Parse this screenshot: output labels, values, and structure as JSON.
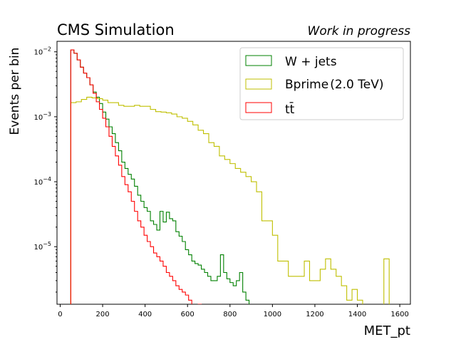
{
  "header": {
    "title": "CMS Simulation",
    "subtitle": "Work in progress"
  },
  "axes": {
    "xlabel": "MET_pt",
    "ylabel": "Events per bin",
    "x_ticks": [
      0,
      200,
      400,
      600,
      800,
      1000,
      1200,
      1400,
      1600
    ],
    "y_ticks": [
      {
        "value": 1e-05,
        "mantissa": "10",
        "exp": "−5"
      },
      {
        "value": 0.0001,
        "mantissa": "10",
        "exp": "−4"
      },
      {
        "value": 0.001,
        "mantissa": "10",
        "exp": "−3"
      },
      {
        "value": 0.01,
        "mantissa": "10",
        "exp": "−2"
      }
    ]
  },
  "chart_data": {
    "type": "step-histogram",
    "xlim": [
      -15,
      1650
    ],
    "ylim_log": [
      1.3e-06,
      0.0145
    ],
    "yscale": "log",
    "legend_position": "top-right",
    "series": [
      {
        "name": "W + jets",
        "label_text": "W + jets",
        "color": "#008000",
        "edges": [
          50,
          65,
          80,
          95,
          110,
          125,
          140,
          155,
          170,
          185,
          200,
          215,
          230,
          245,
          260,
          275,
          290,
          305,
          320,
          335,
          350,
          365,
          380,
          395,
          410,
          425,
          440,
          455,
          470,
          485,
          500,
          515,
          530,
          545,
          560,
          575,
          590,
          605,
          620,
          635,
          650,
          665,
          680,
          695,
          710,
          725,
          740,
          755,
          770,
          785,
          800,
          815,
          830,
          845,
          860,
          875,
          890,
          905,
          920,
          935,
          950,
          965,
          980,
          995,
          1010,
          1025,
          1040,
          1055,
          1070,
          1085,
          1100,
          1115,
          1130,
          1145,
          1160,
          1175,
          1190,
          1205,
          1220,
          1235,
          1250,
          1265
        ],
        "values": [
          0.0107,
          0.0095,
          0.0075,
          0.0058,
          0.0047,
          0.004,
          0.0031,
          0.0024,
          0.002,
          0.0016,
          0.00118,
          0.00092,
          0.0007,
          0.00055,
          0.0004,
          0.0003,
          0.0002,
          0.00016,
          0.00013,
          0.00011,
          8.5e-05,
          6.2e-05,
          5e-05,
          4e-05,
          3.5e-05,
          2.5e-05,
          2.2e-05,
          1.8e-05,
          3.5e-05,
          2.4e-05,
          3.4e-05,
          2.7e-05,
          2.5e-05,
          1.7e-05,
          1.45e-05,
          1.2e-05,
          9e-06,
          7.5e-06,
          6e-06,
          5.5e-06,
          5.2e-06,
          4.5e-06,
          4e-06,
          3.5e-06,
          3e-06,
          3e-06,
          3.5e-06,
          7.5e-06,
          4e-06,
          3.2e-06,
          2.8e-06,
          2.5e-06,
          3e-06,
          4e-06,
          2e-06,
          1.5e-06,
          1e-06,
          1e-06,
          1e-06,
          1e-06,
          1e-06,
          1e-06,
          1e-06,
          1e-06,
          1e-06,
          1e-06,
          1e-06,
          1e-06,
          1e-06,
          1e-06,
          1e-06,
          1e-06,
          1e-06,
          1e-06,
          1e-06,
          1e-06,
          1e-06,
          1e-06,
          1e-06,
          1e-06,
          1e-06
        ]
      },
      {
        "name": "Bprime (2.0 TeV)",
        "label_text": "Bprime",
        "label_paren": "(2.0 TeV)",
        "color": "#bfbf00",
        "edges": [
          50,
          75,
          100,
          125,
          150,
          175,
          200,
          225,
          250,
          275,
          300,
          325,
          350,
          375,
          400,
          425,
          450,
          475,
          500,
          525,
          550,
          575,
          600,
          625,
          650,
          675,
          700,
          725,
          750,
          775,
          800,
          825,
          850,
          875,
          900,
          925,
          950,
          975,
          1000,
          1025,
          1050,
          1075,
          1100,
          1125,
          1150,
          1175,
          1200,
          1225,
          1250,
          1275,
          1300,
          1325,
          1350,
          1375,
          1400,
          1425,
          1450,
          1475,
          1500,
          1525,
          1550,
          1575,
          1600
        ],
        "values": [
          0.00165,
          0.0017,
          0.00185,
          0.002,
          0.00195,
          0.0019,
          0.0018,
          0.00165,
          0.00165,
          0.0015,
          0.00145,
          0.00145,
          0.0015,
          0.00145,
          0.00145,
          0.0013,
          0.0012,
          0.00118,
          0.00115,
          0.0011,
          0.001,
          0.00095,
          0.00085,
          0.00075,
          0.00062,
          0.00055,
          0.0004,
          0.00035,
          0.00025,
          0.00022,
          0.00019,
          0.00016,
          0.00014,
          0.00012,
          0.0001,
          7e-05,
          2.5e-05,
          2.5e-05,
          1.5e-05,
          6e-06,
          6e-06,
          3.5e-06,
          3.5e-06,
          3.5e-06,
          6e-06,
          3e-06,
          3e-06,
          4.5e-06,
          6.5e-06,
          4.5e-06,
          3.5e-06,
          2.5e-06,
          1.5e-06,
          2.2e-06,
          1.5e-06,
          1e-06,
          1e-06,
          1e-06,
          1e-06,
          6.5e-06,
          1e-06,
          1e-06
        ]
      },
      {
        "name": "t t̄",
        "label_text": "tt̄",
        "color": "#ff0000",
        "edges": [
          50,
          65,
          80,
          95,
          110,
          125,
          140,
          155,
          170,
          185,
          200,
          215,
          230,
          245,
          260,
          275,
          290,
          305,
          320,
          335,
          350,
          365,
          380,
          395,
          410,
          425,
          440,
          455,
          470,
          485,
          500,
          515,
          530,
          545,
          560,
          575,
          590,
          605,
          620,
          635,
          650,
          665,
          680,
          695,
          710
        ],
        "values": [
          0.0107,
          0.0095,
          0.0075,
          0.0058,
          0.0047,
          0.004,
          0.0031,
          0.0023,
          0.0017,
          0.0013,
          0.00095,
          0.0007,
          0.0005,
          0.00035,
          0.00025,
          0.00018,
          0.00012,
          9e-05,
          7e-05,
          5e-05,
          3.5e-05,
          2.5e-05,
          2e-05,
          1.5e-05,
          1.2e-05,
          1e-05,
          8e-06,
          7e-06,
          6e-06,
          5e-06,
          4e-06,
          3.5e-06,
          3e-06,
          2.5e-06,
          2.2e-06,
          2e-06,
          1.8e-06,
          1.5e-06,
          1.2e-06,
          1e-06,
          1.3e-06,
          1.2e-06,
          1e-06,
          1e-06
        ]
      }
    ]
  }
}
